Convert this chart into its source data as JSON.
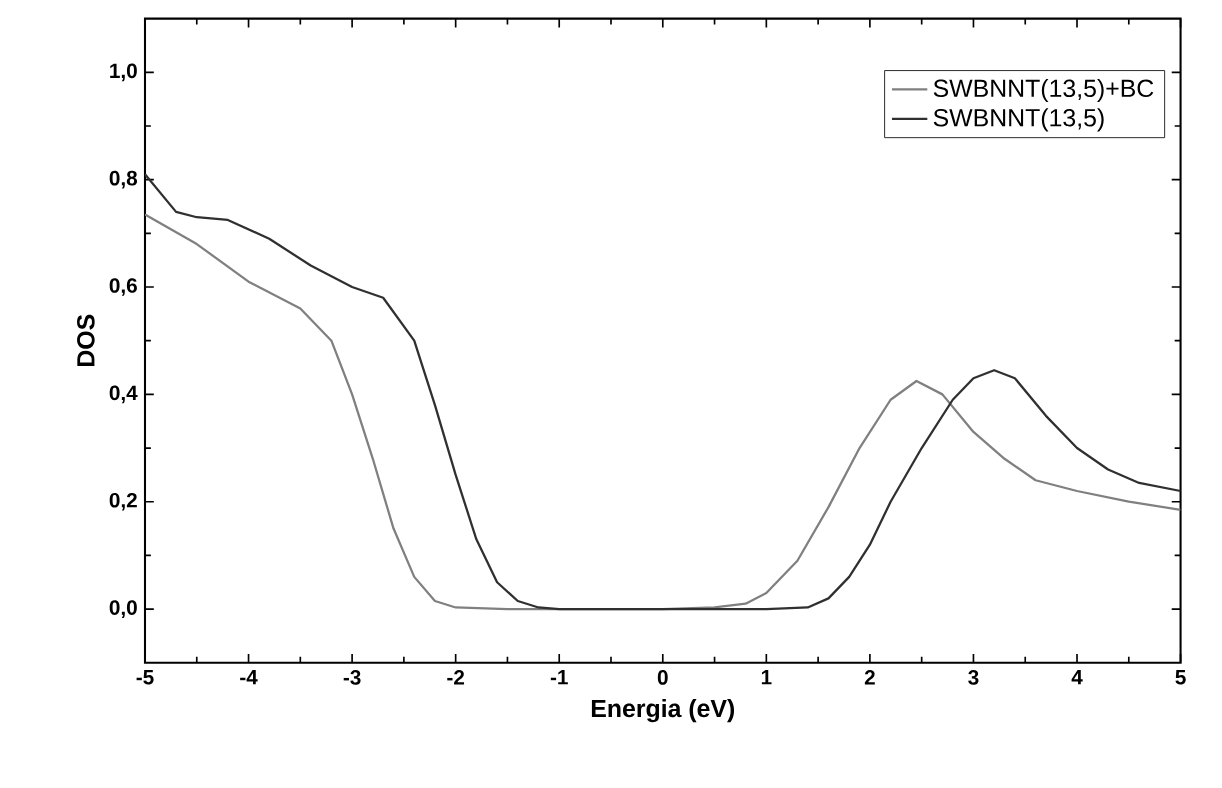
{
  "chart_data": {
    "type": "line",
    "xlabel": "Energia (eV)",
    "ylabel": "DOS",
    "xlim": [
      -5,
      5
    ],
    "ylim": [
      -0.1,
      1.1
    ],
    "xticks": [
      -5,
      -4,
      -3,
      -2,
      -1,
      0,
      1,
      2,
      3,
      4,
      5
    ],
    "yticks": [
      {
        "value": 0,
        "label": "0,0"
      },
      {
        "value": 0.2,
        "label": "0,2"
      },
      {
        "value": 0.4,
        "label": "0,4"
      },
      {
        "value": 0.6,
        "label": "0,6"
      },
      {
        "value": 0.8,
        "label": "0,8"
      },
      {
        "value": 1.0,
        "label": "1,0"
      }
    ],
    "legend": "top right",
    "marker": "none",
    "grid": false,
    "series": [
      {
        "name": "SWBNNT(13,5)+BC",
        "color": "#808080",
        "x": [
          -5,
          -4.5,
          -4,
          -3.5,
          -3.2,
          -3,
          -2.8,
          -2.6,
          -2.4,
          -2.2,
          -2,
          -1.5,
          -1,
          0,
          0.5,
          0.8,
          1,
          1.3,
          1.6,
          1.9,
          2.2,
          2.45,
          2.7,
          3,
          3.3,
          3.6,
          4,
          4.5,
          5
        ],
        "values": [
          0.735,
          0.68,
          0.61,
          0.56,
          0.5,
          0.4,
          0.28,
          0.15,
          0.06,
          0.015,
          0.003,
          0,
          0,
          0,
          0.003,
          0.01,
          0.03,
          0.09,
          0.19,
          0.3,
          0.39,
          0.425,
          0.4,
          0.33,
          0.28,
          0.24,
          0.22,
          0.2,
          0.185
        ]
      },
      {
        "name": "SWBNNT(13,5)",
        "color": "#303030",
        "x": [
          -5,
          -4.7,
          -4.5,
          -4.2,
          -3.8,
          -3.4,
          -3,
          -2.7,
          -2.4,
          -2.2,
          -2,
          -1.8,
          -1.6,
          -1.4,
          -1.2,
          -1,
          0,
          1,
          1.4,
          1.6,
          1.8,
          2,
          2.2,
          2.5,
          2.8,
          3,
          3.2,
          3.4,
          3.7,
          4,
          4.3,
          4.6,
          5
        ],
        "values": [
          0.81,
          0.74,
          0.73,
          0.725,
          0.69,
          0.64,
          0.6,
          0.58,
          0.5,
          0.38,
          0.25,
          0.13,
          0.05,
          0.015,
          0.003,
          0,
          0,
          0,
          0.003,
          0.02,
          0.06,
          0.12,
          0.2,
          0.3,
          0.39,
          0.43,
          0.445,
          0.43,
          0.36,
          0.3,
          0.26,
          0.235,
          0.22
        ]
      }
    ]
  }
}
